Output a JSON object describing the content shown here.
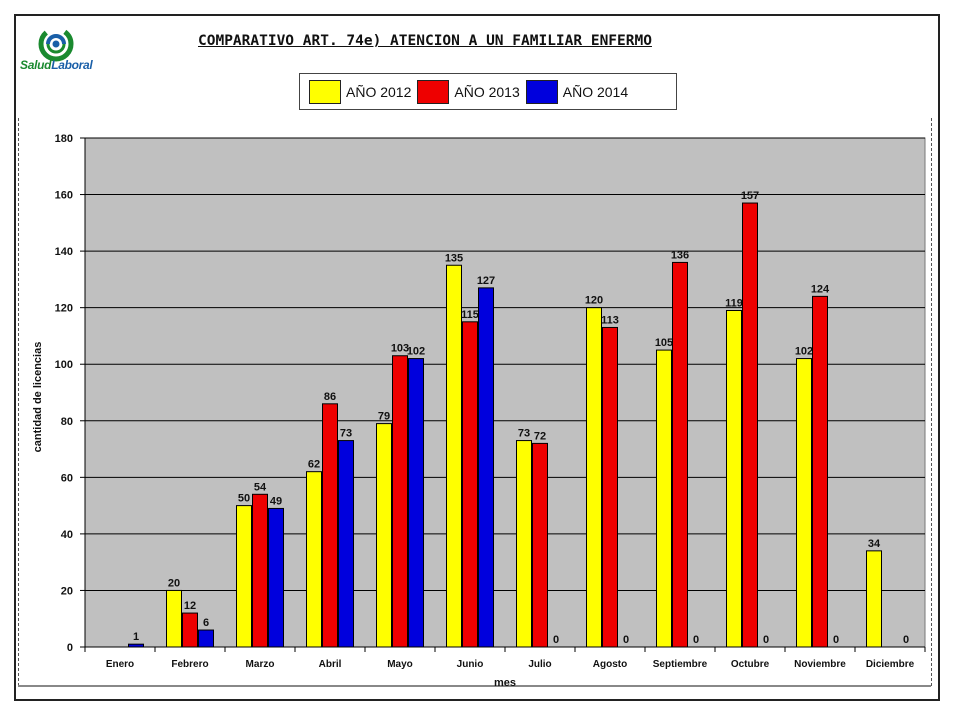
{
  "logo": {
    "part1": "Salud",
    "part2": "Laboral"
  },
  "colors": {
    "y2012": "#ffff00",
    "y2013": "#ee0000",
    "y2014": "#0000dd",
    "plot_bg": "#c0c0c0"
  },
  "chart_data": {
    "type": "bar",
    "title": "COMPARATIVO ART. 74e) ATENCION A UN FAMILIAR ENFERMO",
    "xlabel": "mes",
    "ylabel": "cantidad de licencias",
    "ylim": [
      0,
      180
    ],
    "ytick_step": 20,
    "grid": true,
    "legend_placement": "top",
    "categories": [
      "Enero",
      "Febrero",
      "Marzo",
      "Abril",
      "Mayo",
      "Junio",
      "Julio",
      "Agosto",
      "Septiembre",
      "Octubre",
      "Noviembre",
      "Diciembre"
    ],
    "series": [
      {
        "name": "AÑO 2012",
        "color": "#ffff00",
        "values": [
          null,
          20,
          50,
          62,
          79,
          135,
          73,
          120,
          105,
          119,
          102,
          34
        ]
      },
      {
        "name": "AÑO 2013",
        "color": "#ee0000",
        "values": [
          null,
          12,
          54,
          86,
          103,
          115,
          72,
          113,
          136,
          157,
          124,
          null
        ]
      },
      {
        "name": "AÑO 2014",
        "color": "#0000dd",
        "values": [
          1,
          6,
          49,
          73,
          102,
          127,
          0,
          0,
          0,
          0,
          0,
          0
        ]
      }
    ]
  }
}
